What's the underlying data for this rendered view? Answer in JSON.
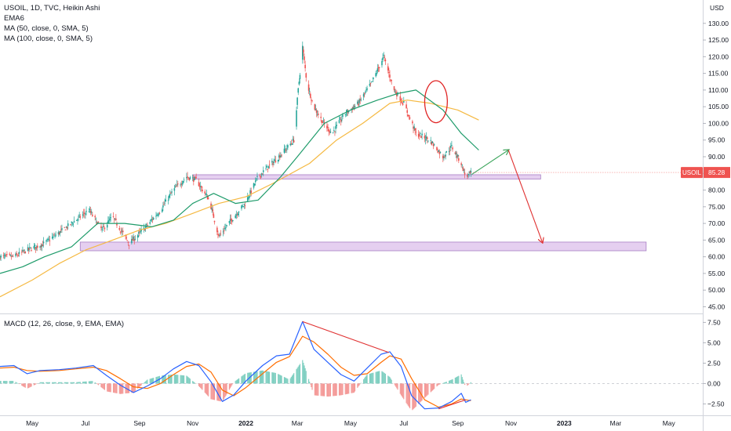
{
  "colors": {
    "up": "#26a69a",
    "down": "#ef5350",
    "ema": "#2962ff",
    "ma50": "#1e9b6a",
    "ma100": "#f5b942",
    "zone_fill": "#e5cff0",
    "zone_stroke": "#a87fc4",
    "arrow_up": "#3ca55c",
    "arrow_down": "#e03030",
    "circle": "#e02424",
    "macd_line": "#2962ff",
    "signal_line": "#ff6d00",
    "price_tag": "#ef5350",
    "divergence": "#e03030"
  },
  "chart_data": [
    {
      "type": "candlestick",
      "legend": [
        "USOIL, 1D, TVC, Heikin Ashi",
        "EMA6",
        "MA (50, close, 0, SMA, 5)",
        "MA (100, close, 0, SMA, 5)"
      ],
      "currency": "USD",
      "ylim": [
        43,
        137
      ],
      "yticks": [
        45,
        50,
        55,
        60,
        65,
        70,
        75,
        80,
        85,
        90,
        95,
        100,
        105,
        110,
        115,
        120,
        125,
        130
      ],
      "ytick_labels": [
        "45.00",
        "50.00",
        "55.00",
        "60.00",
        "65.00",
        "70.00",
        "75.00",
        "80.00",
        "85.00",
        "90.00",
        "95.00",
        "100.00",
        "105.00",
        "110.00",
        "115.00",
        "120.00",
        "125.00",
        "130.00"
      ],
      "last_price": {
        "symbol": "USOIL",
        "value": 85.28,
        "label": "85.28"
      },
      "x_range": [
        "2021-03-25",
        "2023-06-08"
      ],
      "x_ticks": [
        {
          "date": "2021-05-01",
          "label": "May"
        },
        {
          "date": "2021-07-01",
          "label": "Jul"
        },
        {
          "date": "2021-09-01",
          "label": "Sep"
        },
        {
          "date": "2021-11-01",
          "label": "Nov"
        },
        {
          "date": "2022-01-01",
          "label": "2022"
        },
        {
          "date": "2022-03-01",
          "label": "Mar"
        },
        {
          "date": "2022-05-01",
          "label": "May"
        },
        {
          "date": "2022-07-01",
          "label": "Jul"
        },
        {
          "date": "2022-09-01",
          "label": "Sep"
        },
        {
          "date": "2022-11-01",
          "label": "Nov"
        },
        {
          "date": "2023-01-01",
          "label": "2023"
        },
        {
          "date": "2023-03-01",
          "label": "Mar"
        },
        {
          "date": "2023-05-01",
          "label": "May"
        }
      ],
      "price_path": [
        [
          "2021-03-25",
          60
        ],
        [
          "2021-04-10",
          60
        ],
        [
          "2021-04-25",
          62
        ],
        [
          "2021-05-15",
          64
        ],
        [
          "2021-06-05",
          68
        ],
        [
          "2021-06-20",
          71
        ],
        [
          "2021-07-05",
          74
        ],
        [
          "2021-07-20",
          68
        ],
        [
          "2021-08-01",
          72
        ],
        [
          "2021-08-20",
          64
        ],
        [
          "2021-09-05",
          68
        ],
        [
          "2021-09-25",
          74
        ],
        [
          "2021-10-10",
          80
        ],
        [
          "2021-10-25",
          84
        ],
        [
          "2021-11-05",
          83
        ],
        [
          "2021-11-20",
          77
        ],
        [
          "2021-12-01",
          66
        ],
        [
          "2021-12-15",
          71
        ],
        [
          "2021-12-31",
          76
        ],
        [
          "2022-01-15",
          84
        ],
        [
          "2022-01-31",
          88
        ],
        [
          "2022-02-15",
          92
        ],
        [
          "2022-02-25",
          95
        ],
        [
          "2022-03-02",
          110
        ],
        [
          "2022-03-07",
          123
        ],
        [
          "2022-03-12",
          112
        ],
        [
          "2022-03-20",
          105
        ],
        [
          "2022-03-31",
          100
        ],
        [
          "2022-04-10",
          97
        ],
        [
          "2022-04-25",
          103
        ],
        [
          "2022-05-10",
          106
        ],
        [
          "2022-05-25",
          112
        ],
        [
          "2022-06-08",
          120
        ],
        [
          "2022-06-20",
          110
        ],
        [
          "2022-07-01",
          106
        ],
        [
          "2022-07-15",
          97
        ],
        [
          "2022-07-31",
          95
        ],
        [
          "2022-08-15",
          90
        ],
        [
          "2022-08-25",
          93
        ],
        [
          "2022-09-05",
          88
        ],
        [
          "2022-09-10",
          84
        ],
        [
          "2022-09-16",
          85
        ]
      ],
      "ema6": [
        [
          "2021-03-25",
          61
        ],
        [
          "2021-04-10",
          60
        ],
        [
          "2021-04-25",
          61
        ],
        [
          "2021-05-15",
          63
        ],
        [
          "2021-06-05",
          67
        ],
        [
          "2021-06-20",
          70
        ],
        [
          "2021-07-05",
          73
        ],
        [
          "2021-07-20",
          70
        ],
        [
          "2021-08-01",
          71
        ],
        [
          "2021-08-20",
          66
        ],
        [
          "2021-09-05",
          67
        ],
        [
          "2021-09-25",
          73
        ],
        [
          "2021-10-10",
          79
        ],
        [
          "2021-10-25",
          83
        ],
        [
          "2021-11-05",
          83
        ],
        [
          "2021-11-20",
          79
        ],
        [
          "2021-12-01",
          70
        ],
        [
          "2021-12-15",
          71
        ],
        [
          "2021-12-31",
          75
        ],
        [
          "2022-01-15",
          83
        ],
        [
          "2022-01-31",
          87
        ],
        [
          "2022-02-15",
          91
        ],
        [
          "2022-02-25",
          94
        ],
        [
          "2022-03-02",
          104
        ],
        [
          "2022-03-07",
          116
        ],
        [
          "2022-03-12",
          113
        ],
        [
          "2022-03-20",
          107
        ],
        [
          "2022-03-31",
          102
        ],
        [
          "2022-04-10",
          99
        ],
        [
          "2022-04-25",
          102
        ],
        [
          "2022-05-10",
          105
        ],
        [
          "2022-05-25",
          110
        ],
        [
          "2022-06-08",
          117
        ],
        [
          "2022-06-20",
          112
        ],
        [
          "2022-07-01",
          107
        ],
        [
          "2022-07-15",
          99
        ],
        [
          "2022-07-31",
          96
        ],
        [
          "2022-08-15",
          91
        ],
        [
          "2022-08-25",
          92
        ],
        [
          "2022-09-05",
          89
        ],
        [
          "2022-09-10",
          86
        ],
        [
          "2022-09-16",
          86
        ]
      ],
      "ma50": [
        [
          "2021-03-25",
          55
        ],
        [
          "2021-04-20",
          57
        ],
        [
          "2021-05-15",
          60
        ],
        [
          "2021-06-15",
          63
        ],
        [
          "2021-07-15",
          70
        ],
        [
          "2021-08-15",
          70
        ],
        [
          "2021-09-15",
          69
        ],
        [
          "2021-10-10",
          71
        ],
        [
          "2021-11-01",
          76
        ],
        [
          "2021-11-25",
          79
        ],
        [
          "2021-12-20",
          76
        ],
        [
          "2022-01-15",
          77
        ],
        [
          "2022-02-10",
          84
        ],
        [
          "2022-03-01",
          90
        ],
        [
          "2022-04-01",
          100
        ],
        [
          "2022-05-01",
          104
        ],
        [
          "2022-06-01",
          107
        ],
        [
          "2022-06-25",
          109
        ],
        [
          "2022-07-15",
          110
        ],
        [
          "2022-08-15",
          104
        ],
        [
          "2022-09-05",
          97
        ],
        [
          "2022-09-25",
          92
        ]
      ],
      "ma100": [
        [
          "2021-03-25",
          48
        ],
        [
          "2021-05-01",
          53
        ],
        [
          "2021-06-01",
          58
        ],
        [
          "2021-07-01",
          62
        ],
        [
          "2021-08-01",
          65
        ],
        [
          "2021-09-01",
          68
        ],
        [
          "2021-10-01",
          70
        ],
        [
          "2021-11-01",
          73
        ],
        [
          "2021-12-01",
          76
        ],
        [
          "2022-01-01",
          78
        ],
        [
          "2022-02-01",
          82
        ],
        [
          "2022-03-15",
          88
        ],
        [
          "2022-04-15",
          95
        ],
        [
          "2022-05-15",
          100
        ],
        [
          "2022-06-15",
          106
        ],
        [
          "2022-07-05",
          107
        ],
        [
          "2022-08-01",
          106
        ],
        [
          "2022-09-01",
          104
        ],
        [
          "2022-09-25",
          101
        ]
      ],
      "annotations": {
        "zones": [
          {
            "x0": "2021-11-01",
            "x1": "2022-12-05",
            "y0": 83.3,
            "y1": 84.6
          },
          {
            "x0": "2021-06-25",
            "x1": "2023-04-05",
            "y0": 61.8,
            "y1": 64.4
          }
        ],
        "arrows": [
          {
            "from": [
              "2022-09-17",
              84.7
            ],
            "to": [
              "2022-10-29",
              92
            ],
            "kind": "up"
          },
          {
            "from": [
              "2022-10-29",
              92
            ],
            "to": [
              "2022-12-07",
              64.3
            ],
            "kind": "down"
          }
        ],
        "circle": {
          "center": [
            "2022-08-07",
            106.5
          ],
          "radius_days": 13,
          "radius_value": 6.3
        }
      }
    },
    {
      "type": "histogram_with_lines",
      "legend": "MACD (12, 26, close, 9, EMA, EMA)",
      "ylim": [
        -3.9,
        8.5
      ],
      "yticks": [
        -2.5,
        0,
        2.5,
        5,
        7.5
      ],
      "ytick_labels": [
        "−2.50",
        "0.00",
        "2.50",
        "5.00",
        "7.50"
      ],
      "macd": [
        [
          "2021-03-25",
          2.1
        ],
        [
          "2021-04-10",
          2.2
        ],
        [
          "2021-04-25",
          1.2
        ],
        [
          "2021-05-10",
          1.6
        ],
        [
          "2021-06-01",
          1.7
        ],
        [
          "2021-06-20",
          1.9
        ],
        [
          "2021-07-10",
          2.2
        ],
        [
          "2021-07-25",
          1.0
        ],
        [
          "2021-08-10",
          -0.2
        ],
        [
          "2021-08-25",
          -1.1
        ],
        [
          "2021-09-10",
          -0.3
        ],
        [
          "2021-09-25",
          0.6
        ],
        [
          "2021-10-10",
          1.8
        ],
        [
          "2021-10-25",
          2.7
        ],
        [
          "2021-11-08",
          2.2
        ],
        [
          "2021-11-22",
          0.2
        ],
        [
          "2021-12-05",
          -2.2
        ],
        [
          "2021-12-18",
          -1.4
        ],
        [
          "2022-01-01",
          0.3
        ],
        [
          "2022-01-20",
          2.2
        ],
        [
          "2022-02-05",
          3.4
        ],
        [
          "2022-02-20",
          3.6
        ],
        [
          "2022-03-07",
          7.6
        ],
        [
          "2022-03-20",
          4.2
        ],
        [
          "2022-04-05",
          2.6
        ],
        [
          "2022-04-20",
          1.1
        ],
        [
          "2022-05-05",
          0.3
        ],
        [
          "2022-05-20",
          1.9
        ],
        [
          "2022-06-05",
          3.6
        ],
        [
          "2022-06-15",
          3.9
        ],
        [
          "2022-06-28",
          2.1
        ],
        [
          "2022-07-10",
          -1.5
        ],
        [
          "2022-07-25",
          -3.1
        ],
        [
          "2022-08-10",
          -3.0
        ],
        [
          "2022-08-25",
          -2.2
        ],
        [
          "2022-09-05",
          -1.2
        ],
        [
          "2022-09-10",
          -2.3
        ],
        [
          "2022-09-16",
          -2.0
        ]
      ],
      "signal": [
        [
          "2021-03-25",
          1.9
        ],
        [
          "2021-04-10",
          2.0
        ],
        [
          "2021-04-25",
          1.6
        ],
        [
          "2021-05-10",
          1.5
        ],
        [
          "2021-06-01",
          1.6
        ],
        [
          "2021-06-20",
          1.8
        ],
        [
          "2021-07-10",
          2.0
        ],
        [
          "2021-07-25",
          1.6
        ],
        [
          "2021-08-10",
          0.6
        ],
        [
          "2021-08-25",
          -0.4
        ],
        [
          "2021-09-10",
          -0.6
        ],
        [
          "2021-09-25",
          0.0
        ],
        [
          "2021-10-10",
          1.1
        ],
        [
          "2021-10-25",
          2.1
        ],
        [
          "2021-11-08",
          2.4
        ],
        [
          "2021-11-22",
          1.4
        ],
        [
          "2021-12-05",
          -0.8
        ],
        [
          "2021-12-18",
          -1.5
        ],
        [
          "2022-01-01",
          -0.5
        ],
        [
          "2022-01-20",
          1.2
        ],
        [
          "2022-02-05",
          2.6
        ],
        [
          "2022-02-20",
          3.3
        ],
        [
          "2022-03-07",
          5.8
        ],
        [
          "2022-03-20",
          5.1
        ],
        [
          "2022-04-05",
          3.6
        ],
        [
          "2022-04-20",
          2.0
        ],
        [
          "2022-05-05",
          1.0
        ],
        [
          "2022-05-20",
          1.2
        ],
        [
          "2022-06-05",
          2.6
        ],
        [
          "2022-06-15",
          3.4
        ],
        [
          "2022-06-28",
          3.0
        ],
        [
          "2022-07-10",
          0.6
        ],
        [
          "2022-07-25",
          -2.0
        ],
        [
          "2022-08-10",
          -2.9
        ],
        [
          "2022-08-25",
          -2.5
        ],
        [
          "2022-09-05",
          -1.9
        ],
        [
          "2022-09-10",
          -2.0
        ],
        [
          "2022-09-16",
          -2.1
        ]
      ],
      "annotations": {
        "lines": [
          {
            "from": [
              "2022-03-07",
              7.6
            ],
            "to": [
              "2022-06-14",
              3.8
            ]
          },
          {
            "from": [
              "2022-08-10",
              -3.1
            ],
            "to": [
              "2022-09-10",
              -2.0
            ]
          }
        ]
      }
    }
  ]
}
